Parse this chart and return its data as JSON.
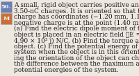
{
  "background_color": "#ede8e0",
  "box_50_color": "#6b7fb5",
  "box_m_color": "#c8703a",
  "text_color": "#1a1a1a",
  "box_label": "50.",
  "m_label": "M",
  "main_text_line1": "A small, rigid object carries positive and negative",
  "main_text_line2": "3.50-nC charges. It is oriented so that the positive",
  "main_text_line3": "charge has coordinates (−1.20 mm, 1.10 mm) and the",
  "main_text_line4": "negative charge is at the point (1.40 mm, −1.30 mm).",
  "main_text_line5": "(a) Find the electric dipole moment of the object. The",
  "main_text_line6": "object is placed in an electric field ⃗E = (7.80 × 10³ î −",
  "main_text_line7": "4.90 × 10³ ĵ) N/C. (b) Find the torque acting on the",
  "main_text_line8": "object. (c) Find the potential energy of the object-field",
  "main_text_line9": "system when the object is in this orientation. (d) Assum-",
  "main_text_line10": "ing the orientation of the object can change, find",
  "main_text_line11": "the difference between the maximum and minimum",
  "main_text_line12": "potential energies of the system.",
  "fontsize": 6.5,
  "figsize": [
    2.0,
    1.1
  ],
  "dpi": 100
}
